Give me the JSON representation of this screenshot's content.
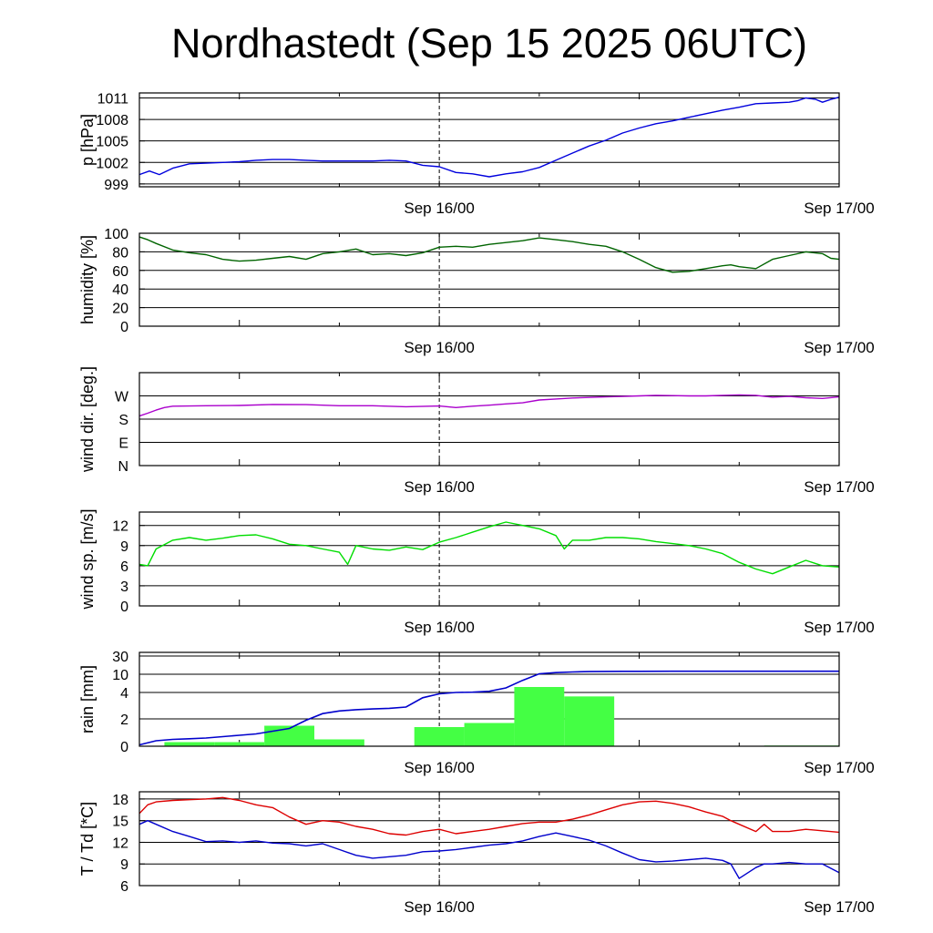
{
  "title": "Nordhastedt (Sep 15 2025 06UTC)",
  "x_axis": {
    "start": "Sep 15 06UTC",
    "end": "Sep 17 00UTC",
    "tick_labels": [
      "Sep 16/00",
      "Sep 17/00"
    ],
    "marker": "Sep 16/00"
  },
  "chart_data": [
    {
      "type": "line",
      "ylabel": "p [hPa]",
      "ylim": [
        998.6,
        1011.7
      ],
      "yticks": [
        999,
        1002,
        1005,
        1008,
        1011
      ],
      "ytick_labels": [
        "999",
        "1002",
        "1005",
        "1008",
        "1011"
      ],
      "grid": true,
      "x_hours": [
        6,
        6.6,
        7.2,
        8,
        9,
        10,
        11,
        12,
        13,
        14,
        15,
        16,
        17,
        18,
        19,
        20,
        21,
        22,
        23,
        24,
        25,
        26,
        27,
        28,
        29,
        30,
        31,
        32,
        33,
        34,
        35,
        36,
        37,
        38,
        39,
        40,
        41,
        42,
        43,
        44,
        45,
        45.5,
        46,
        46.6,
        47,
        47.5,
        48
      ],
      "series": [
        {
          "color": "#0000dd",
          "values": [
            1000.3,
            1000.8,
            1000.3,
            1001.2,
            1001.8,
            1001.9,
            1002.0,
            1002.1,
            1002.3,
            1002.4,
            1002.4,
            1002.3,
            1002.2,
            1002.2,
            1002.2,
            1002.2,
            1002.3,
            1002.2,
            1001.6,
            1001.4,
            1000.6,
            1000.4,
            1000.0,
            1000.4,
            1000.7,
            1001.3,
            1002.3,
            1003.3,
            1004.3,
            1005.1,
            1006.1,
            1006.8,
            1007.4,
            1007.8,
            1008.3,
            1008.8,
            1009.3,
            1009.7,
            1010.2,
            1010.3,
            1010.4,
            1010.6,
            1011.0,
            1010.8,
            1010.4,
            1010.8,
            1011.1
          ]
        }
      ]
    },
    {
      "type": "line",
      "ylabel": "humidity [%]",
      "ylim": [
        0,
        100
      ],
      "yticks": [
        0,
        20,
        40,
        60,
        80,
        100
      ],
      "ytick_labels": [
        "0",
        "20",
        "40",
        "60",
        "80",
        "100"
      ],
      "grid": true,
      "x_hours": [
        6,
        6.5,
        7,
        8,
        9,
        10,
        11,
        12,
        13,
        14,
        15,
        16,
        17,
        18,
        19,
        20,
        21,
        22,
        23,
        24,
        25,
        26,
        27,
        28,
        29,
        30,
        31,
        32,
        33,
        34,
        35,
        36,
        37,
        38,
        39,
        40,
        41,
        41.5,
        42,
        43,
        44,
        45,
        46,
        47,
        47.5,
        48
      ],
      "series": [
        {
          "color": "#006400",
          "values": [
            96,
            93,
            89,
            82,
            79,
            77,
            72,
            70,
            71,
            73,
            75,
            72,
            78,
            80,
            83,
            77,
            78,
            76,
            79,
            85,
            86,
            85,
            88,
            90,
            92,
            95,
            93,
            91,
            88,
            86,
            80,
            72,
            63,
            58,
            59,
            62,
            65,
            66,
            64,
            62,
            72,
            76,
            80,
            78,
            73,
            72
          ]
        }
      ]
    },
    {
      "type": "line",
      "ylabel": "wind dir. [deg.]",
      "ylim": [
        0,
        360
      ],
      "yticks": [
        0,
        90,
        180,
        270
      ],
      "ytick_labels": [
        "N",
        "E",
        "S",
        "W"
      ],
      "grid": true,
      "x_hours": [
        6,
        6.5,
        7,
        7.5,
        8,
        10,
        12,
        14,
        16,
        18,
        20,
        22,
        24,
        25,
        26,
        27,
        28,
        29,
        30,
        31,
        32,
        33,
        34,
        35,
        36,
        37,
        38,
        39,
        40,
        41,
        42,
        43,
        44,
        45,
        46,
        47,
        48
      ],
      "series": [
        {
          "color": "#aa00cc",
          "values": [
            192,
            203,
            215,
            225,
            230,
            232,
            233,
            237,
            236,
            232,
            232,
            228,
            231,
            225,
            230,
            234,
            239,
            243,
            254,
            258,
            262,
            264,
            266,
            268,
            270,
            272,
            271,
            270,
            270,
            272,
            274,
            272,
            265,
            268,
            263,
            260,
            266
          ]
        }
      ]
    },
    {
      "type": "line",
      "ylabel": "wind sp. [m/s]",
      "ylim": [
        0,
        14
      ],
      "yticks": [
        0,
        3,
        6,
        9,
        12
      ],
      "ytick_labels": [
        "0",
        "3",
        "6",
        "9",
        "12"
      ],
      "grid": true,
      "x_hours": [
        6,
        6.5,
        7,
        8,
        9,
        10,
        11,
        12,
        13,
        14,
        15,
        16,
        17,
        18,
        18.5,
        19,
        20,
        21,
        22,
        23,
        24,
        25,
        26,
        27,
        28,
        29,
        30,
        31,
        31.5,
        32,
        33,
        34,
        35,
        36,
        37,
        38,
        39,
        40,
        41,
        42,
        43,
        44,
        45,
        46,
        47,
        48
      ],
      "series": [
        {
          "color": "#00dd00",
          "values": [
            6.2,
            6.0,
            8.5,
            9.8,
            10.2,
            9.8,
            10.1,
            10.5,
            10.6,
            10.0,
            9.2,
            9.0,
            8.5,
            8.0,
            6.2,
            9.0,
            8.5,
            8.3,
            8.8,
            8.4,
            9.5,
            10.2,
            11.0,
            11.8,
            12.5,
            12.0,
            11.5,
            10.5,
            8.5,
            9.8,
            9.8,
            10.2,
            10.2,
            10.0,
            9.6,
            9.3,
            9.0,
            8.5,
            7.8,
            6.5,
            5.5,
            4.8,
            5.8,
            6.8,
            6.0,
            5.8
          ]
        }
      ]
    },
    {
      "type": "bar",
      "ylabel": "rain [mm]",
      "scale": "nonlinear",
      "yticks": [
        0,
        2,
        4,
        10,
        30
      ],
      "ytick_labels": [
        "0",
        "2",
        "4",
        "10",
        "30"
      ],
      "grid": true,
      "bar_color": "#44ff44",
      "line_color": "#0000cc",
      "bars": [
        {
          "start": "Sep 15 06UTC",
          "hours": [
            7.5,
            10.5
          ],
          "value": 0.3
        },
        {
          "start": "Sep 15 09UTC",
          "hours": [
            10.5,
            13.5
          ],
          "value": 0.3
        },
        {
          "start": "Sep 15 12UTC",
          "hours": [
            13.5,
            16.5
          ],
          "value": 1.5
        },
        {
          "start": "Sep 15 15UTC",
          "hours": [
            16.5,
            19.5
          ],
          "value": 0.5
        },
        {
          "start": "Sep 15 21UTC",
          "hours": [
            22.5,
            25.5
          ],
          "value": 1.4
        },
        {
          "start": "Sep 16 00UTC",
          "hours": [
            25.5,
            28.5
          ],
          "value": 1.7
        },
        {
          "start": "Sep 16 03UTC",
          "hours": [
            28.5,
            31.5
          ],
          "value": 5.8
        },
        {
          "start": "Sep 16 06UTC",
          "hours": [
            31.5,
            34.5
          ],
          "value": 3.7
        },
        {
          "start": "Sep 16 18UTC",
          "hours": [
            43.5,
            48
          ],
          "value": 0.05
        }
      ],
      "accumulated": {
        "x_hours": [
          6,
          7,
          8,
          9,
          10,
          11,
          12,
          13,
          14,
          15,
          16,
          17,
          18,
          19,
          20,
          21,
          22,
          23,
          24,
          25,
          26,
          27,
          28,
          29,
          30,
          31,
          32,
          33,
          34,
          35,
          36,
          38,
          40,
          42,
          44,
          46,
          48
        ],
        "values": [
          0.1,
          0.4,
          0.5,
          0.55,
          0.6,
          0.7,
          0.8,
          0.9,
          1.1,
          1.3,
          1.9,
          2.4,
          2.6,
          2.7,
          2.75,
          2.8,
          2.9,
          3.6,
          3.9,
          4.0,
          4.1,
          4.4,
          5.5,
          8.0,
          10.5,
          11.8,
          12.5,
          12.9,
          13.1,
          13.2,
          13.25,
          13.3,
          13.3,
          13.3,
          13.3,
          13.3,
          13.3
        ]
      }
    },
    {
      "type": "line",
      "ylabel": "T / Td [*C]",
      "ylim": [
        6,
        19
      ],
      "yticks": [
        6,
        9,
        12,
        15,
        18
      ],
      "ytick_labels": [
        "6",
        "9",
        "12",
        "15",
        "18"
      ],
      "grid": true,
      "x_hours": [
        6,
        6.5,
        7,
        8,
        9,
        10,
        11,
        12,
        13,
        14,
        15,
        16,
        17,
        18,
        19,
        20,
        21,
        22,
        23,
        24,
        25,
        26,
        27,
        28,
        29,
        30,
        31,
        32,
        33,
        34,
        35,
        36,
        37,
        38,
        39,
        40,
        41,
        41.5,
        42,
        43,
        43.5,
        44,
        45,
        46,
        47,
        48
      ],
      "series": [
        {
          "color": "#dd0000",
          "values": [
            16.0,
            17.2,
            17.6,
            17.8,
            17.9,
            18.0,
            18.2,
            17.8,
            17.2,
            16.8,
            15.5,
            14.5,
            15.0,
            14.8,
            14.2,
            13.8,
            13.2,
            13.0,
            13.5,
            13.8,
            13.2,
            13.5,
            13.8,
            14.2,
            14.6,
            14.8,
            14.8,
            15.2,
            15.8,
            16.5,
            17.2,
            17.6,
            17.7,
            17.4,
            16.9,
            16.2,
            15.6,
            15.0,
            14.5,
            13.5,
            14.5,
            13.5,
            13.5,
            13.8,
            13.6,
            13.4
          ]
        },
        {
          "color": "#0000cc",
          "values": [
            14.5,
            15.0,
            14.5,
            13.5,
            12.8,
            12.1,
            12.2,
            12.0,
            12.2,
            11.9,
            11.8,
            11.5,
            11.8,
            11.0,
            10.2,
            9.8,
            10.0,
            10.2,
            10.7,
            10.8,
            11.0,
            11.3,
            11.6,
            11.8,
            12.2,
            12.8,
            13.3,
            12.8,
            12.3,
            11.5,
            10.5,
            9.6,
            9.3,
            9.4,
            9.6,
            9.8,
            9.5,
            9.0,
            7.0,
            8.5,
            9.0,
            9.0,
            9.2,
            9.0,
            9.0,
            7.8
          ]
        }
      ]
    }
  ]
}
